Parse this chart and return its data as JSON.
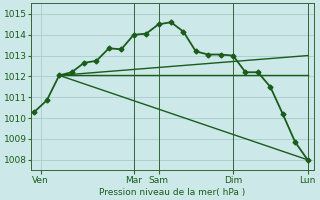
{
  "xlabel": "Pression niveau de la mer( hPa )",
  "bg_color": "#cce8e8",
  "grid_color": "#aacccc",
  "line_color": "#1a5c1a",
  "vline_color": "#336633",
  "x_ticks_labels": [
    "Ven",
    "Mar",
    "Sam",
    "Dim",
    "Lun"
  ],
  "x_ticks_pos": [
    0.5,
    8,
    10,
    16,
    22
  ],
  "ylim": [
    1007.5,
    1015.5
  ],
  "yticks": [
    1008,
    1009,
    1010,
    1011,
    1012,
    1013,
    1014,
    1015
  ],
  "main_series_x": [
    0,
    1,
    2,
    3,
    4,
    5,
    6,
    7,
    8,
    9,
    10,
    11,
    12,
    13,
    14,
    15,
    16,
    17,
    18,
    19,
    20,
    21,
    22
  ],
  "main_series_y": [
    1010.3,
    1010.85,
    1012.05,
    1012.2,
    1012.65,
    1012.75,
    1013.35,
    1013.3,
    1014.0,
    1014.05,
    1014.5,
    1014.6,
    1014.15,
    1013.2,
    1013.05,
    1013.05,
    1013.0,
    1012.2,
    1012.2,
    1011.5,
    1010.2,
    1008.85,
    1008.0
  ],
  "line1_x": [
    2,
    22
  ],
  "line1_y": [
    1012.05,
    1008.0
  ],
  "line2_x": [
    2,
    22
  ],
  "line2_y": [
    1012.05,
    1012.05
  ],
  "line3_x": [
    2,
    22
  ],
  "line3_y": [
    1012.05,
    1013.0
  ],
  "vlines": [
    8,
    10,
    16,
    22
  ],
  "xlim": [
    -0.3,
    22.5
  ]
}
